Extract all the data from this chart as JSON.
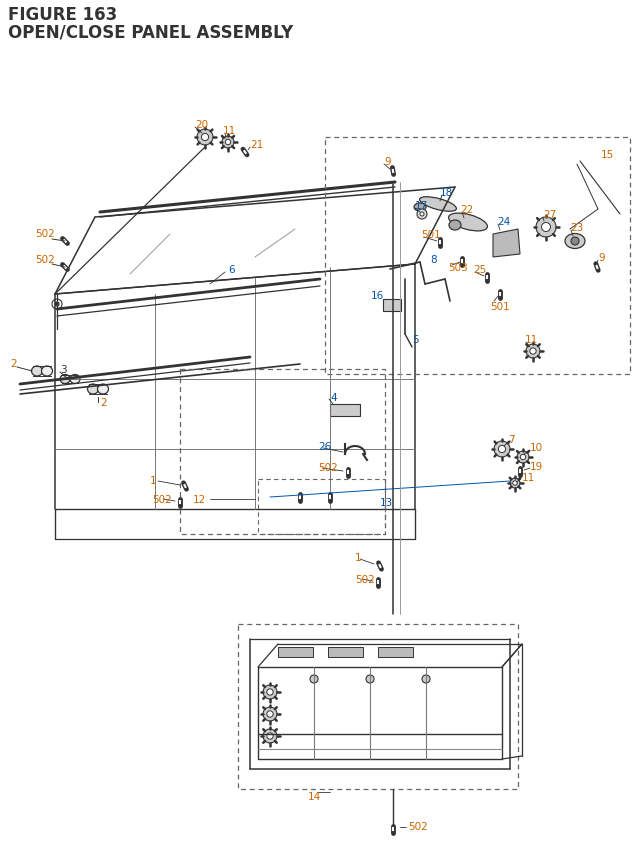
{
  "title_line1": "FIGURE 163",
  "title_line2": "OPEN/CLOSE PANEL ASSEMBLY",
  "title_color": "#1a1a2e",
  "title_fontsize": 11,
  "bg_color": "#ffffff",
  "oc": "#cc6600",
  "bc": "#0055aa",
  "bk": "#333333",
  "pc": "#333333",
  "lc": "#333333",
  "dc": "#666666",
  "fs": 7.5
}
